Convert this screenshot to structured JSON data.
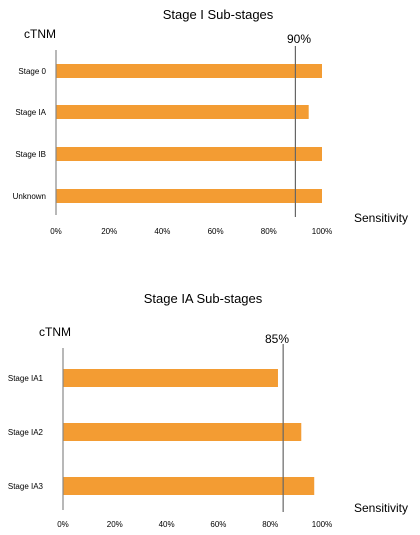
{
  "chart_data": [
    {
      "type": "bar",
      "orientation": "horizontal",
      "title": "Stage I Sub-stages",
      "ylabel": "cTNM",
      "xlabel": "Sensitivity",
      "categories": [
        "Stage 0",
        "Stage IA",
        "Stage IB",
        "Unknown"
      ],
      "values": [
        100,
        95,
        100,
        100
      ],
      "xlim": [
        0,
        100
      ],
      "xticks": [
        "0%",
        "20%",
        "40%",
        "60%",
        "80%",
        "100%"
      ],
      "reference_line": {
        "value": 90,
        "label": "90%"
      },
      "bar_color": "#f39c33",
      "grid": false
    },
    {
      "type": "bar",
      "orientation": "horizontal",
      "title": "Stage IA Sub-stages",
      "ylabel": "cTNM",
      "xlabel": "Sensitivity",
      "categories": [
        "Stage IA1",
        "Stage IA2",
        "Stage IA3"
      ],
      "values": [
        83,
        92,
        97
      ],
      "xlim": [
        0,
        100
      ],
      "xticks": [
        "0%",
        "20%",
        "40%",
        "60%",
        "80%",
        "100%"
      ],
      "reference_line": {
        "value": 85,
        "label": "85%"
      },
      "bar_color": "#f39c33",
      "grid": false
    }
  ]
}
